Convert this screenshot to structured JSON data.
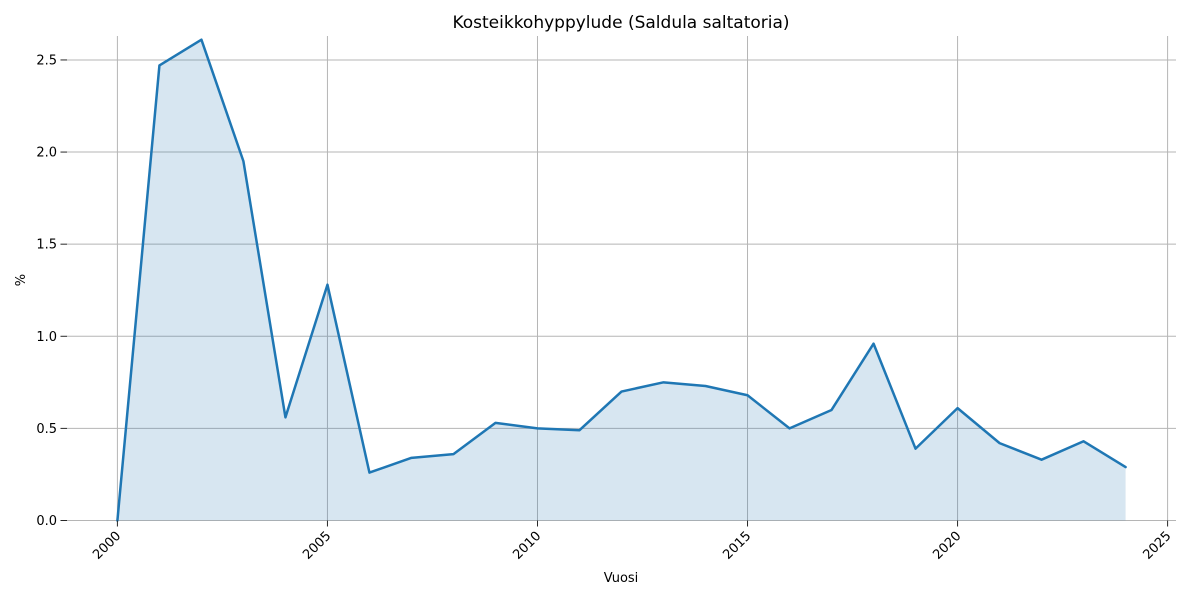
{
  "figure": {
    "background": "#ffffff"
  },
  "chart_data": {
    "type": "area",
    "title": "Kosteikkohyppylude (Saldula saltatoria)",
    "xlabel": "Vuosi",
    "ylabel": "%",
    "x": [
      2000,
      2001,
      2002,
      2003,
      2004,
      2005,
      2006,
      2007,
      2008,
      2009,
      2010,
      2011,
      2012,
      2013,
      2014,
      2015,
      2016,
      2017,
      2018,
      2019,
      2020,
      2021,
      2022,
      2023,
      2024
    ],
    "values": [
      0.0,
      2.47,
      2.61,
      1.95,
      0.56,
      1.28,
      0.26,
      0.34,
      0.36,
      0.53,
      0.5,
      0.49,
      0.7,
      0.75,
      0.73,
      0.68,
      0.5,
      0.6,
      0.96,
      0.39,
      0.61,
      0.42,
      0.33,
      0.43,
      0.29
    ],
    "xlim": [
      1998.8,
      2025.2
    ],
    "ylim": [
      0,
      2.63
    ],
    "xticks": [
      2000,
      2005,
      2010,
      2015,
      2020,
      2025
    ],
    "xtick_labels": [
      "2000",
      "2005",
      "2010",
      "2015",
      "2020",
      "2025"
    ],
    "yticks": [
      0.0,
      0.5,
      1.0,
      1.5,
      2.0,
      2.5
    ],
    "ytick_labels": [
      "0.0",
      "0.5",
      "1.0",
      "1.5",
      "2.0",
      "2.5"
    ],
    "grid": true,
    "legend": "none",
    "xtick_label_rotation": 45,
    "colors": {
      "line": "#1f77b4",
      "fill": "rgba(31,119,180,0.18)",
      "grid": "#b5b5b5",
      "tick": "#262626",
      "text": "#000000"
    }
  }
}
